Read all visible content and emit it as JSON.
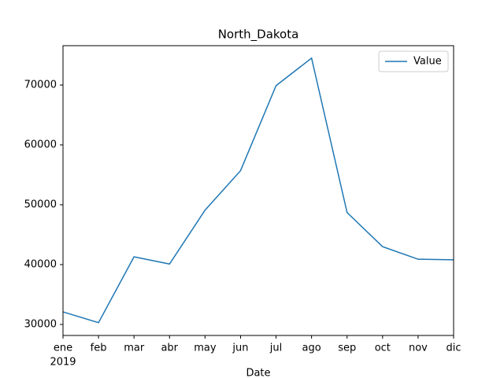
{
  "chart_data": {
    "type": "line",
    "title": "North_Dakota",
    "x_label": "Date",
    "year_label": "2019",
    "categories": [
      "ene",
      "feb",
      "mar",
      "abr",
      "may",
      "jun",
      "jul",
      "ago",
      "sep",
      "oct",
      "nov",
      "dic"
    ],
    "series": [
      {
        "name": "Value",
        "color": "#1f77b4",
        "values": [
          32100,
          30300,
          41300,
          40100,
          49100,
          55700,
          69900,
          74500,
          48700,
          43000,
          40900,
          40800
        ]
      }
    ],
    "ylim": [
      28160,
      76580
    ],
    "yticks": [
      30000,
      40000,
      50000,
      60000,
      70000
    ],
    "legend": "upper-right",
    "grid": false
  }
}
